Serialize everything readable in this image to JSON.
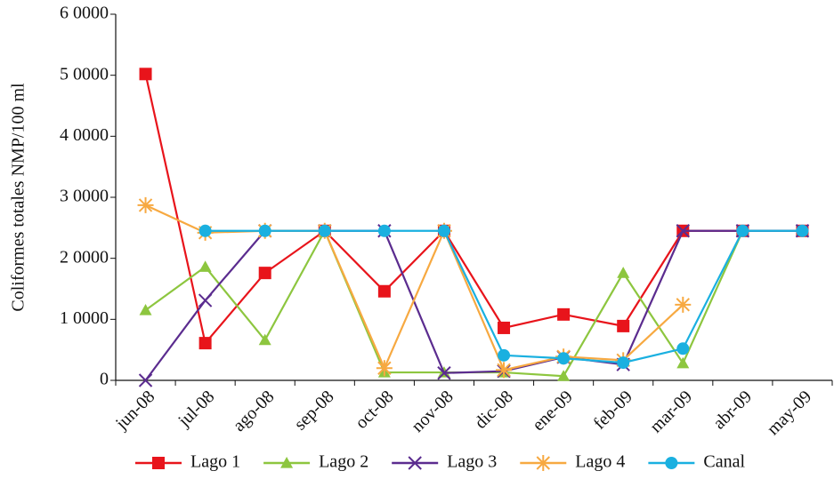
{
  "chart_data": {
    "type": "line",
    "y_label": "Coliformes totales NMP/100 ml",
    "categories": [
      "jun-08",
      "jul-08",
      "ago-08",
      "sep-08",
      "oct-08",
      "nov-08",
      "dic-08",
      "ene-09",
      "feb-09",
      "mar-09",
      "abr-09",
      "may-09"
    ],
    "ylim": [
      0,
      60000
    ],
    "yticks": [
      0,
      {
        "value": 10000,
        "label": "1 0000"
      },
      {
        "value": 20000,
        "label": "2 0000"
      },
      {
        "value": 30000,
        "label": "3 0000"
      },
      {
        "value": 40000,
        "label": "4 0000"
      },
      {
        "value": 50000,
        "label": "5 0000"
      },
      {
        "value": 60000,
        "label": "6 0000"
      }
    ],
    "grid": false,
    "legend": "bottom",
    "series": [
      {
        "name": "Lago 1",
        "color": "#e8141b",
        "marker": "square",
        "values": [
          50200,
          6100,
          17600,
          24500,
          14600,
          24500,
          8600,
          10800,
          8900,
          24500,
          24500,
          24500
        ]
      },
      {
        "name": "Lago 2",
        "color": "#8dc63f",
        "marker": "triangle",
        "values": [
          11500,
          18600,
          6600,
          24500,
          1300,
          1300,
          1300,
          700,
          17600,
          2800,
          24500,
          24500
        ]
      },
      {
        "name": "Lago 3",
        "color": "#5b2c8f",
        "marker": "x",
        "values": [
          0,
          13100,
          24500,
          24500,
          24500,
          1200,
          1500,
          3800,
          2600,
          24500,
          24500,
          24500
        ]
      },
      {
        "name": "Lago 4",
        "color": "#f7a941",
        "marker": "star",
        "values": [
          28700,
          24200,
          24500,
          24500,
          2000,
          24500,
          1700,
          3900,
          3300,
          12400,
          null,
          null
        ]
      },
      {
        "name": "Canal",
        "color": "#1ab0e0",
        "marker": "circle",
        "values": [
          null,
          24500,
          24500,
          24500,
          24500,
          24500,
          4100,
          3600,
          2900,
          5200,
          24500,
          24500
        ]
      }
    ]
  }
}
